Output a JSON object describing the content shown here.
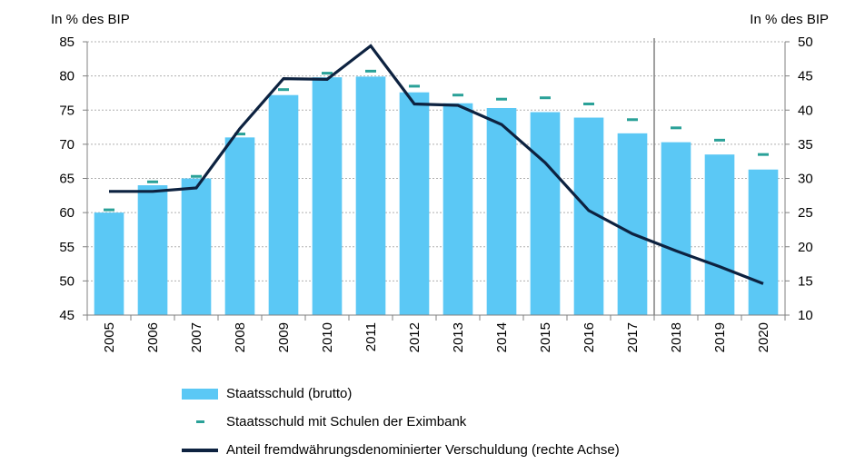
{
  "chart_data": {
    "type": "bar",
    "left_axis_label": "In % des BIP",
    "right_axis_label": "In % des BIP",
    "categories": [
      "2005",
      "2006",
      "2007",
      "2008",
      "2009",
      "2010",
      "2011",
      "2012",
      "2013",
      "2014",
      "2015",
      "2016",
      "2017",
      "2018",
      "2019",
      "2020"
    ],
    "ylim_left": [
      45,
      85
    ],
    "yticks_left": [
      45,
      50,
      55,
      60,
      65,
      70,
      75,
      80,
      85
    ],
    "ylim_right": [
      10,
      50
    ],
    "yticks_right": [
      10,
      15,
      20,
      25,
      30,
      35,
      40,
      45,
      50
    ],
    "grid": true,
    "forecast_divider_between": [
      "2017",
      "2018"
    ],
    "series": [
      {
        "name": "Staatsschuld (brutto)",
        "kind": "bar",
        "axis": "left",
        "color": "#5BC8F5",
        "values": [
          60.0,
          64.0,
          65.0,
          71.0,
          77.2,
          79.8,
          79.9,
          77.6,
          76.0,
          75.3,
          74.7,
          73.9,
          71.6,
          70.3,
          68.5,
          66.3
        ]
      },
      {
        "name": "Staatsschuld mit Schulen der Eximbank",
        "kind": "marker",
        "axis": "left",
        "color": "#2AA198",
        "values": [
          60.4,
          64.5,
          65.3,
          71.5,
          78.0,
          80.4,
          80.7,
          78.5,
          77.2,
          76.6,
          76.8,
          75.9,
          73.6,
          72.4,
          70.6,
          68.5
        ]
      },
      {
        "name": "Anteil fremdwährungsdenominierter Verschuldung (rechte Achse)",
        "kind": "line",
        "axis": "right",
        "color": "#0D2240",
        "values": [
          28.1,
          28.1,
          28.6,
          37.3,
          44.6,
          44.5,
          49.4,
          40.9,
          40.7,
          37.9,
          32.3,
          25.3,
          21.9,
          19.4,
          17.1,
          14.6
        ]
      }
    ]
  }
}
